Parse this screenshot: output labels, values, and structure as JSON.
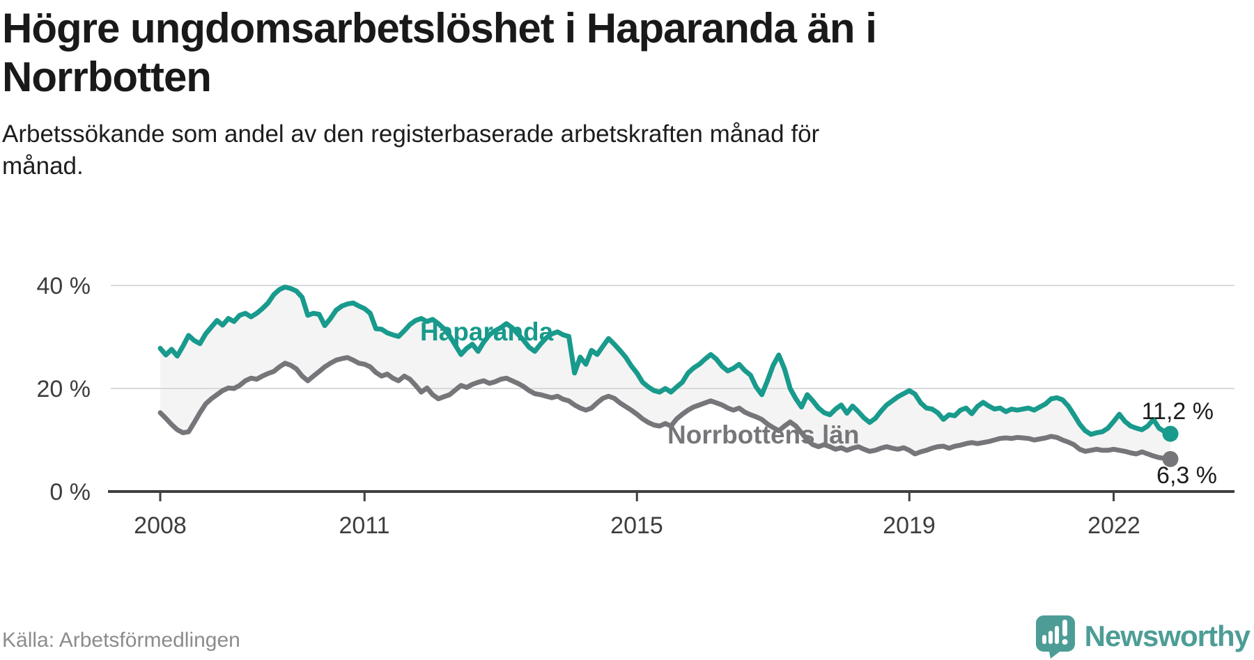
{
  "title": {
    "lines": [
      "Högre ungdomsarbetslöshet i Haparanda än i",
      "Norrbotten"
    ]
  },
  "subtitle": {
    "lines": [
      "Arbetssökande som andel av den registerbaserade arbetskraften månad för",
      "månad."
    ]
  },
  "source": {
    "text": "Källa: Arbetsförmedlingen"
  },
  "brand": {
    "name": "Newsworthy",
    "icon": "newsworthy-speech-bubble-chart-icon",
    "color": "#4d9d96"
  },
  "colors": {
    "haparanda": "#189a8c",
    "norrbotten": "#76767a",
    "fill_between": "#f4f4f4",
    "gridline": "#d9d9d9",
    "axis": "#3f3f3f",
    "value_label": "#1d1d1d"
  },
  "chart_data": {
    "type": "line",
    "unit": "%",
    "frequency": "monthly",
    "x_start": "2008-01",
    "x_end": "2022-11",
    "x_tick_labels": [
      "2008",
      "2011",
      "2015",
      "2019",
      "2022"
    ],
    "x_tick_months": [
      0,
      36,
      84,
      132,
      168
    ],
    "y_ticks": [
      0,
      20,
      40
    ],
    "y_tick_labels": [
      "0 %",
      "20 %",
      "40 %"
    ],
    "ylim": [
      0,
      44
    ],
    "grid": "horizontal",
    "legend": "inline-labels",
    "fill_between": true,
    "series": [
      {
        "name": "Haparanda",
        "color": "#189a8c",
        "end_value": 11.2,
        "end_label": "11,2 %",
        "values": [
          27.8,
          26.5,
          27.6,
          26.3,
          28.2,
          30.3,
          29.3,
          28.7,
          30.6,
          31.9,
          33.2,
          32.3,
          33.6,
          33.0,
          34.2,
          34.6,
          33.9,
          34.6,
          35.5,
          36.6,
          38.2,
          39.2,
          39.7,
          39.4,
          38.9,
          37.7,
          34.2,
          34.6,
          34.4,
          32.2,
          33.6,
          35.2,
          36.0,
          36.4,
          36.6,
          36.0,
          35.5,
          34.6,
          31.6,
          31.5,
          30.8,
          30.4,
          30.1,
          31.2,
          32.4,
          33.2,
          33.6,
          33.0,
          33.4,
          32.6,
          31.6,
          30.2,
          28.4,
          26.6,
          27.8,
          28.6,
          27.2,
          29.0,
          30.4,
          31.2,
          31.8,
          32.6,
          31.8,
          30.6,
          29.4,
          28.0,
          27.2,
          28.6,
          29.8,
          30.6,
          31.0,
          30.4,
          30.1,
          23.0,
          26.1,
          24.7,
          27.4,
          26.6,
          28.2,
          29.7,
          28.6,
          27.4,
          26.1,
          24.4,
          23.0,
          21.2,
          20.3,
          19.6,
          19.3,
          20.0,
          19.3,
          20.3,
          21.2,
          23.0,
          24.0,
          24.7,
          25.7,
          26.6,
          25.7,
          24.3,
          23.4,
          23.9,
          24.7,
          23.5,
          22.6,
          20.3,
          18.8,
          21.5,
          24.5,
          26.5,
          23.8,
          20.0,
          18.0,
          16.4,
          18.8,
          17.6,
          16.2,
          15.3,
          14.9,
          16.0,
          16.8,
          15.2,
          16.6,
          15.5,
          14.3,
          13.4,
          14.2,
          15.6,
          16.8,
          17.6,
          18.4,
          19.0,
          19.6,
          18.9,
          17.2,
          16.2,
          16.0,
          15.3,
          14.0,
          14.9,
          14.7,
          15.8,
          16.2,
          15.1,
          16.5,
          17.3,
          16.6,
          16.0,
          16.2,
          15.5,
          16.0,
          15.8,
          16.0,
          16.2,
          15.8,
          16.4,
          17.0,
          18.0,
          18.2,
          17.8,
          16.6,
          14.9,
          13.1,
          11.8,
          11.1,
          11.4,
          11.6,
          12.3,
          13.6,
          15.0,
          13.6,
          12.7,
          12.3,
          12.0,
          12.7,
          14.0,
          12.3,
          11.6,
          11.2
        ]
      },
      {
        "name": "Norrbottens län",
        "color": "#76767a",
        "end_value": 6.3,
        "end_label": "6,3 %",
        "values": [
          15.3,
          14.2,
          13.0,
          12.0,
          11.4,
          11.6,
          13.4,
          15.3,
          17.0,
          18.0,
          18.8,
          19.6,
          20.1,
          20.0,
          20.6,
          21.5,
          22.0,
          21.8,
          22.4,
          22.9,
          23.3,
          24.2,
          24.9,
          24.5,
          23.8,
          22.4,
          21.5,
          22.4,
          23.3,
          24.2,
          24.9,
          25.5,
          25.8,
          26.0,
          25.5,
          24.9,
          24.7,
          24.2,
          23.1,
          22.4,
          22.8,
          22.0,
          21.5,
          22.4,
          21.8,
          20.6,
          19.3,
          20.1,
          18.8,
          18.0,
          18.4,
          18.8,
          19.7,
          20.6,
          20.2,
          20.8,
          21.2,
          21.5,
          21.0,
          21.3,
          21.8,
          22.0,
          21.5,
          21.0,
          20.4,
          19.6,
          19.0,
          18.8,
          18.5,
          18.2,
          18.5,
          17.9,
          17.6,
          16.8,
          16.2,
          15.8,
          16.2,
          17.2,
          18.1,
          18.5,
          18.1,
          17.2,
          16.5,
          15.8,
          15.0,
          14.1,
          13.4,
          12.9,
          12.7,
          13.2,
          12.7,
          14.1,
          15.0,
          15.8,
          16.4,
          16.8,
          17.2,
          17.6,
          17.2,
          16.8,
          16.2,
          15.8,
          16.2,
          15.4,
          14.9,
          14.5,
          14.0,
          13.1,
          12.4,
          11.8,
          12.7,
          13.5,
          12.7,
          11.4,
          10.0,
          9.1,
          8.7,
          9.1,
          8.7,
          8.2,
          8.5,
          8.0,
          8.4,
          8.7,
          8.2,
          7.8,
          8.0,
          8.4,
          8.7,
          8.4,
          8.2,
          8.5,
          8.0,
          7.3,
          7.7,
          8.0,
          8.4,
          8.7,
          8.8,
          8.4,
          8.8,
          9.0,
          9.3,
          9.5,
          9.3,
          9.5,
          9.7,
          10.0,
          10.3,
          10.4,
          10.3,
          10.5,
          10.4,
          10.3,
          10.0,
          10.2,
          10.4,
          10.7,
          10.5,
          10.0,
          9.6,
          9.1,
          8.2,
          7.8,
          8.0,
          8.2,
          8.0,
          8.0,
          8.2,
          8.0,
          7.8,
          7.5,
          7.3,
          7.7,
          7.3,
          6.9,
          6.6,
          6.4,
          6.3
        ]
      }
    ]
  }
}
